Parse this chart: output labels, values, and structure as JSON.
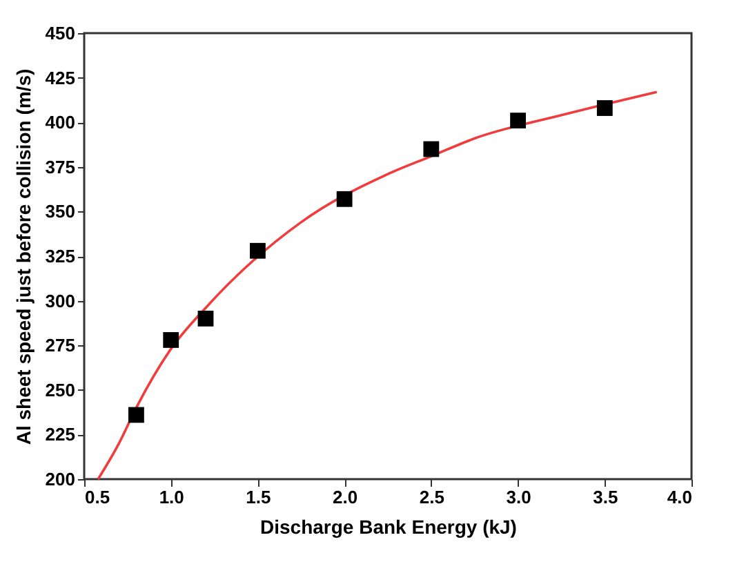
{
  "chart_data": {
    "type": "scatter",
    "xlabel": "Discharge Bank Energy (kJ)",
    "ylabel": "Al sheet speed just before collision (m/s)",
    "xlim": [
      0.5,
      4.0
    ],
    "xticks": [
      {
        "value": 0.5,
        "label": "0.5"
      },
      {
        "value": 1,
        "label": "1.0"
      },
      {
        "value": 1.5,
        "label": "1.5"
      },
      {
        "value": 2,
        "label": "2.0"
      },
      {
        "value": 2.5,
        "label": "2.5"
      },
      {
        "value": 3,
        "label": "3.0"
      },
      {
        "value": 3.5,
        "label": "3.5"
      },
      {
        "value": 4,
        "label": "4.0"
      }
    ],
    "ylim": [
      200,
      450
    ],
    "yticks": [
      200,
      225,
      250,
      275,
      300,
      325,
      350,
      375,
      400,
      425,
      450
    ],
    "marker": "square",
    "grid": false,
    "series": [
      {
        "color": "#000000",
        "x": [
          0.8,
          1.0,
          1.2,
          1.5,
          2.0,
          2.5,
          3.0,
          3.5
        ],
        "values": [
          236,
          278,
          290,
          328,
          357,
          385,
          401,
          408
        ]
      },
      {
        "type": "line",
        "color": "#f03c3c",
        "marker": "none",
        "x": [
          0.58,
          0.7,
          0.8,
          1.0,
          1.2,
          1.75,
          2.25,
          2.5,
          2.75,
          3.25,
          3.8
        ],
        "values": [
          200,
          220,
          240,
          273,
          296,
          344,
          371,
          381,
          391,
          404,
          417
        ]
      }
    ]
  }
}
